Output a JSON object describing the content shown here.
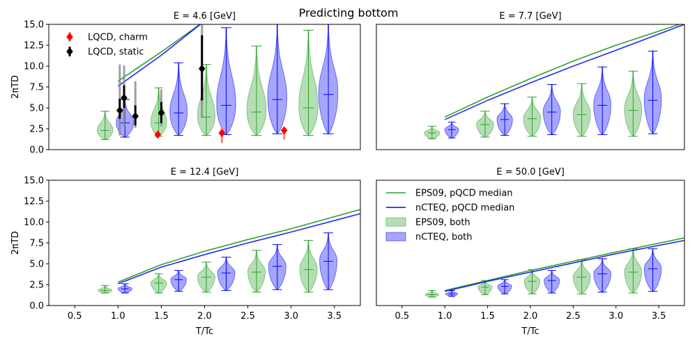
{
  "figure": {
    "suptitle": "Predicting bottom"
  },
  "chart_data": [
    {
      "type": "violin",
      "title": "E = 4.6 [GeV]",
      "xlabel": "",
      "ylabel": "2πTD",
      "xlim": [
        0.2,
        3.8
      ],
      "ylim": [
        0,
        15
      ],
      "xticks": [],
      "yticks": [
        0,
        2.5,
        5,
        7.5,
        10,
        12.5,
        15
      ],
      "ytick_labels": [
        "0.0",
        "2.5",
        "5.0",
        "7.5",
        "10.0",
        "12.5",
        "15.0"
      ],
      "legend": {
        "position": "top-left",
        "entries": [
          {
            "label": "LQCD, charm",
            "color": "#ff0000",
            "marker": "diamond"
          },
          {
            "label": "LQCD, static",
            "color": "#000000",
            "marker": "diamond"
          }
        ]
      },
      "lines": [
        {
          "color": "#2ca02c",
          "points": [
            [
              1.0,
              8.2
            ],
            [
              1.5,
              11.7
            ],
            [
              2.0,
              15.4
            ]
          ]
        },
        {
          "color": "#0000ff",
          "points": [
            [
              1.0,
              7.6
            ],
            [
              1.5,
              11.3
            ],
            [
              2.0,
              15.4
            ]
          ]
        }
      ],
      "violins": [
        {
          "x": 0.85,
          "color": "#2ca02c",
          "min": 1.2,
          "median": 2.3,
          "max": 4.6,
          "width": 0.18
        },
        {
          "x": 1.08,
          "color": "#0000ff",
          "min": 1.5,
          "median": 3.2,
          "max": 6.0,
          "width": 0.2
        },
        {
          "x": 1.47,
          "color": "#2ca02c",
          "min": 1.6,
          "median": 3.2,
          "max": 7.4,
          "width": 0.18
        },
        {
          "x": 1.7,
          "color": "#0000ff",
          "min": 1.7,
          "median": 4.4,
          "max": 10.4,
          "width": 0.2
        },
        {
          "x": 2.02,
          "color": "#2ca02c",
          "min": 1.7,
          "median": 3.9,
          "max": 10.2,
          "width": 0.2
        },
        {
          "x": 2.25,
          "color": "#0000ff",
          "min": 1.8,
          "median": 5.3,
          "max": 14.6,
          "width": 0.22
        },
        {
          "x": 2.6,
          "color": "#2ca02c",
          "min": 1.7,
          "median": 4.5,
          "max": 12.4,
          "width": 0.22
        },
        {
          "x": 2.84,
          "color": "#0000ff",
          "min": 1.9,
          "median": 6.0,
          "max": 15.0,
          "width": 0.22
        },
        {
          "x": 3.2,
          "color": "#2ca02c",
          "min": 1.7,
          "median": 5.0,
          "max": 14.3,
          "width": 0.22
        },
        {
          "x": 3.43,
          "color": "#0000ff",
          "min": 1.9,
          "median": 6.6,
          "max": 15.0,
          "width": 0.22
        }
      ],
      "points": [
        {
          "series": "LQCD, charm",
          "x": 1.46,
          "y": 1.8,
          "yerr_low": 0.4,
          "yerr_high": 0.4
        },
        {
          "series": "LQCD, charm",
          "x": 2.2,
          "y": 2.0,
          "yerr_low": 1.2,
          "yerr_high": 0.6
        },
        {
          "series": "LQCD, charm",
          "x": 2.92,
          "y": 2.3,
          "yerr_low": 1.1,
          "yerr_high": 0.4
        },
        {
          "series": "LQCD, static",
          "x": 1.02,
          "y": 4.7,
          "yerr_low": 1.0,
          "yerr_high": 1.4,
          "sys_low": 3.0,
          "sys_high": 5.5
        },
        {
          "series": "LQCD, static",
          "x": 1.07,
          "y": 6.2,
          "yerr_low": 1.2,
          "yerr_high": 1.5,
          "sys_low": 3.4,
          "sys_high": 3.9
        },
        {
          "series": "LQCD, static",
          "x": 1.2,
          "y": 4.0,
          "yerr_low": 1.1,
          "yerr_high": 1.3,
          "sys_low": 1.4,
          "sys_high": 4.2
        },
        {
          "series": "LQCD, static",
          "x": 1.5,
          "y": 4.4,
          "yerr_low": 1.2,
          "yerr_high": 1.3,
          "sys_low": 1.6,
          "sys_high": 2.8
        },
        {
          "series": "LQCD, static",
          "x": 1.97,
          "y": 9.7,
          "yerr_low": 3.8,
          "yerr_high": 4.0,
          "sys_low": 5.9,
          "sys_high": 5.3
        }
      ]
    },
    {
      "type": "violin",
      "title": "E = 7.7 [GeV]",
      "xlabel": "",
      "ylabel": "",
      "xlim": [
        0.2,
        3.8
      ],
      "ylim": [
        0,
        15
      ],
      "xticks": [],
      "yticks": [],
      "lines": [
        {
          "color": "#2ca02c",
          "points": [
            [
              1.0,
              3.9
            ],
            [
              1.5,
              6.3
            ],
            [
              2.0,
              8.5
            ],
            [
              2.5,
              10.6
            ],
            [
              3.0,
              12.5
            ],
            [
              3.8,
              15.2
            ]
          ]
        },
        {
          "color": "#0000ff",
          "points": [
            [
              1.0,
              3.6
            ],
            [
              1.5,
              5.9
            ],
            [
              2.0,
              8.0
            ],
            [
              2.5,
              10.0
            ],
            [
              3.0,
              11.9
            ],
            [
              3.8,
              15.0
            ]
          ]
        }
      ],
      "violins": [
        {
          "x": 0.85,
          "color": "#2ca02c",
          "min": 1.3,
          "median": 2.0,
          "max": 2.8,
          "width": 0.18
        },
        {
          "x": 1.08,
          "color": "#0000ff",
          "min": 1.4,
          "median": 2.4,
          "max": 3.3,
          "width": 0.16
        },
        {
          "x": 1.47,
          "color": "#2ca02c",
          "min": 1.5,
          "median": 3.0,
          "max": 4.6,
          "width": 0.2
        },
        {
          "x": 1.7,
          "color": "#0000ff",
          "min": 1.7,
          "median": 3.6,
          "max": 5.5,
          "width": 0.18
        },
        {
          "x": 2.02,
          "color": "#2ca02c",
          "min": 1.6,
          "median": 3.7,
          "max": 6.3,
          "width": 0.2
        },
        {
          "x": 2.25,
          "color": "#0000ff",
          "min": 1.8,
          "median": 4.5,
          "max": 7.8,
          "width": 0.2
        },
        {
          "x": 2.6,
          "color": "#2ca02c",
          "min": 1.6,
          "median": 4.2,
          "max": 7.9,
          "width": 0.2
        },
        {
          "x": 2.84,
          "color": "#0000ff",
          "min": 1.8,
          "median": 5.3,
          "max": 9.9,
          "width": 0.2
        },
        {
          "x": 3.2,
          "color": "#2ca02c",
          "min": 1.6,
          "median": 4.7,
          "max": 9.4,
          "width": 0.2
        },
        {
          "x": 3.43,
          "color": "#0000ff",
          "min": 1.9,
          "median": 5.9,
          "max": 11.8,
          "width": 0.2
        }
      ]
    },
    {
      "type": "violin",
      "title": "E = 12.4 [GeV]",
      "xlabel": "T/Tc",
      "ylabel": "2πTD",
      "xlim": [
        0.2,
        3.8
      ],
      "ylim": [
        0,
        15
      ],
      "xticks": [
        0.5,
        1.0,
        1.5,
        2.0,
        2.5,
        3.0,
        3.5
      ],
      "xtick_labels": [
        "0.5",
        "1.0",
        "1.5",
        "2.0",
        "2.5",
        "3.0",
        "3.5"
      ],
      "yticks": [
        0,
        2.5,
        5,
        7.5,
        10,
        12.5,
        15
      ],
      "ytick_labels": [
        "0.0",
        "2.5",
        "5.0",
        "7.5",
        "10.0",
        "12.5",
        "15.0"
      ],
      "lines": [
        {
          "color": "#2ca02c",
          "points": [
            [
              1.0,
              2.8
            ],
            [
              1.5,
              4.9
            ],
            [
              2.0,
              6.5
            ],
            [
              2.5,
              7.9
            ],
            [
              3.0,
              9.2
            ],
            [
              3.8,
              11.5
            ]
          ]
        },
        {
          "color": "#0000ff",
          "points": [
            [
              1.0,
              2.6
            ],
            [
              1.5,
              4.6
            ],
            [
              2.0,
              6.1
            ],
            [
              2.5,
              7.5
            ],
            [
              3.0,
              8.8
            ],
            [
              3.8,
              11.0
            ]
          ]
        }
      ],
      "violins": [
        {
          "x": 0.85,
          "color": "#2ca02c",
          "min": 1.5,
          "median": 1.8,
          "max": 2.4,
          "width": 0.16
        },
        {
          "x": 1.08,
          "color": "#0000ff",
          "min": 1.5,
          "median": 2.0,
          "max": 2.6,
          "width": 0.16
        },
        {
          "x": 1.47,
          "color": "#2ca02c",
          "min": 1.5,
          "median": 2.7,
          "max": 3.8,
          "width": 0.18
        },
        {
          "x": 1.7,
          "color": "#0000ff",
          "min": 1.7,
          "median": 3.1,
          "max": 4.2,
          "width": 0.18
        },
        {
          "x": 2.02,
          "color": "#2ca02c",
          "min": 1.6,
          "median": 3.4,
          "max": 5.2,
          "width": 0.2
        },
        {
          "x": 2.25,
          "color": "#0000ff",
          "min": 1.8,
          "median": 3.9,
          "max": 5.8,
          "width": 0.2
        },
        {
          "x": 2.6,
          "color": "#2ca02c",
          "min": 1.6,
          "median": 4.0,
          "max": 6.6,
          "width": 0.2
        },
        {
          "x": 2.84,
          "color": "#0000ff",
          "min": 1.9,
          "median": 4.7,
          "max": 7.3,
          "width": 0.2
        },
        {
          "x": 3.2,
          "color": "#2ca02c",
          "min": 1.6,
          "median": 4.3,
          "max": 7.8,
          "width": 0.2
        },
        {
          "x": 3.43,
          "color": "#0000ff",
          "min": 1.9,
          "median": 5.3,
          "max": 8.7,
          "width": 0.2
        }
      ]
    },
    {
      "type": "violin",
      "title": "E = 50.0 [GeV]",
      "xlabel": "T/Tc",
      "ylabel": "",
      "xlim": [
        0.2,
        3.8
      ],
      "ylim": [
        0,
        15
      ],
      "xticks": [
        0.5,
        1.0,
        1.5,
        2.0,
        2.5,
        3.0,
        3.5
      ],
      "xtick_labels": [
        "0.5",
        "1.0",
        "1.5",
        "2.0",
        "2.5",
        "3.0",
        "3.5"
      ],
      "yticks": [],
      "legend": {
        "position": "top-left",
        "entries": [
          {
            "label": "EPS09, pQCD median",
            "color": "#2ca02c",
            "marker": "line"
          },
          {
            "label": "nCTEQ, pQCD median",
            "color": "#0000ff",
            "marker": "line"
          },
          {
            "label": "EPS09, both",
            "color": "#2ca02c",
            "marker": "patch"
          },
          {
            "label": "nCTEQ, both",
            "color": "#0000ff",
            "marker": "patch"
          }
        ]
      },
      "lines": [
        {
          "color": "#2ca02c",
          "points": [
            [
              1.0,
              1.8
            ],
            [
              1.5,
              3.0
            ],
            [
              2.0,
              4.2
            ],
            [
              2.5,
              5.3
            ],
            [
              3.0,
              6.4
            ],
            [
              3.8,
              8.1
            ]
          ]
        },
        {
          "color": "#0000ff",
          "points": [
            [
              1.0,
              1.7
            ],
            [
              1.5,
              2.9
            ],
            [
              2.0,
              4.0
            ],
            [
              2.5,
              5.1
            ],
            [
              3.0,
              6.2
            ],
            [
              3.8,
              7.8
            ]
          ]
        }
      ],
      "violins": [
        {
          "x": 0.85,
          "color": "#2ca02c",
          "min": 1.0,
          "median": 1.3,
          "max": 1.8,
          "width": 0.16
        },
        {
          "x": 1.08,
          "color": "#0000ff",
          "min": 1.1,
          "median": 1.4,
          "max": 1.8,
          "width": 0.14
        },
        {
          "x": 1.47,
          "color": "#2ca02c",
          "min": 1.3,
          "median": 2.2,
          "max": 3.0,
          "width": 0.16
        },
        {
          "x": 1.7,
          "color": "#0000ff",
          "min": 1.4,
          "median": 2.3,
          "max": 3.1,
          "width": 0.16
        },
        {
          "x": 2.02,
          "color": "#2ca02c",
          "min": 1.4,
          "median": 2.9,
          "max": 4.3,
          "width": 0.18
        },
        {
          "x": 2.25,
          "color": "#0000ff",
          "min": 1.5,
          "median": 3.0,
          "max": 4.2,
          "width": 0.18
        },
        {
          "x": 2.6,
          "color": "#2ca02c",
          "min": 1.4,
          "median": 3.4,
          "max": 5.5,
          "width": 0.2
        },
        {
          "x": 2.84,
          "color": "#0000ff",
          "min": 1.6,
          "median": 3.8,
          "max": 5.6,
          "width": 0.2
        },
        {
          "x": 3.2,
          "color": "#2ca02c",
          "min": 1.5,
          "median": 4.0,
          "max": 6.8,
          "width": 0.2
        },
        {
          "x": 3.43,
          "color": "#0000ff",
          "min": 1.7,
          "median": 4.4,
          "max": 6.8,
          "width": 0.2
        }
      ]
    }
  ]
}
